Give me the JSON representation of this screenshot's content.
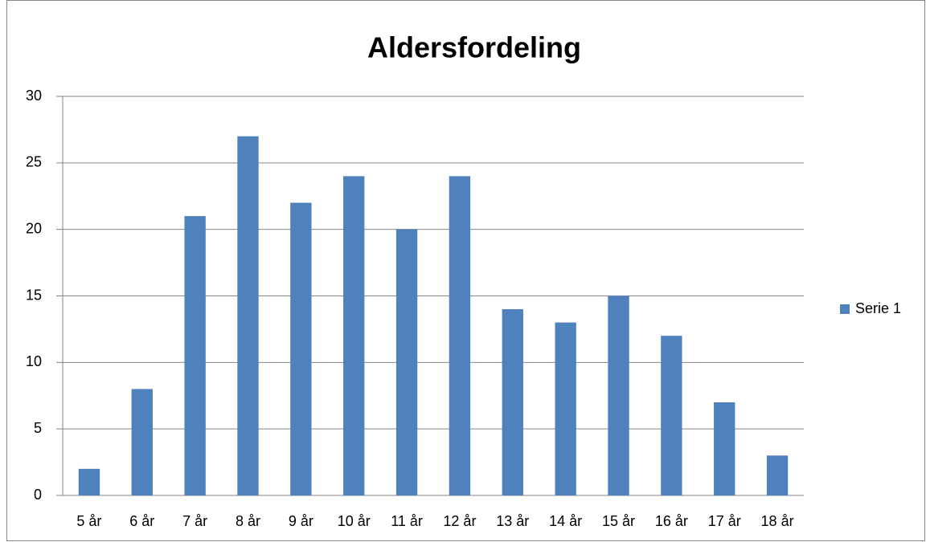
{
  "chart_data": {
    "type": "bar",
    "title": "Aldersfordeling",
    "categories": [
      "5 år",
      "6 år",
      "7 år",
      "8 år",
      "9 år",
      "10 år",
      "11 år",
      "12 år",
      "13 år",
      "14 år",
      "15 år",
      "16 år",
      "17 år",
      "18 år"
    ],
    "series": [
      {
        "name": "Serie 1",
        "color": "#4f81bd",
        "values": [
          2,
          8,
          21,
          27,
          22,
          24,
          20,
          24,
          14,
          13,
          15,
          12,
          7,
          3
        ]
      }
    ],
    "ylim": [
      0,
      30
    ],
    "yticks": [
      0,
      5,
      10,
      15,
      20,
      25,
      30
    ],
    "grid": true,
    "legend": "right"
  }
}
